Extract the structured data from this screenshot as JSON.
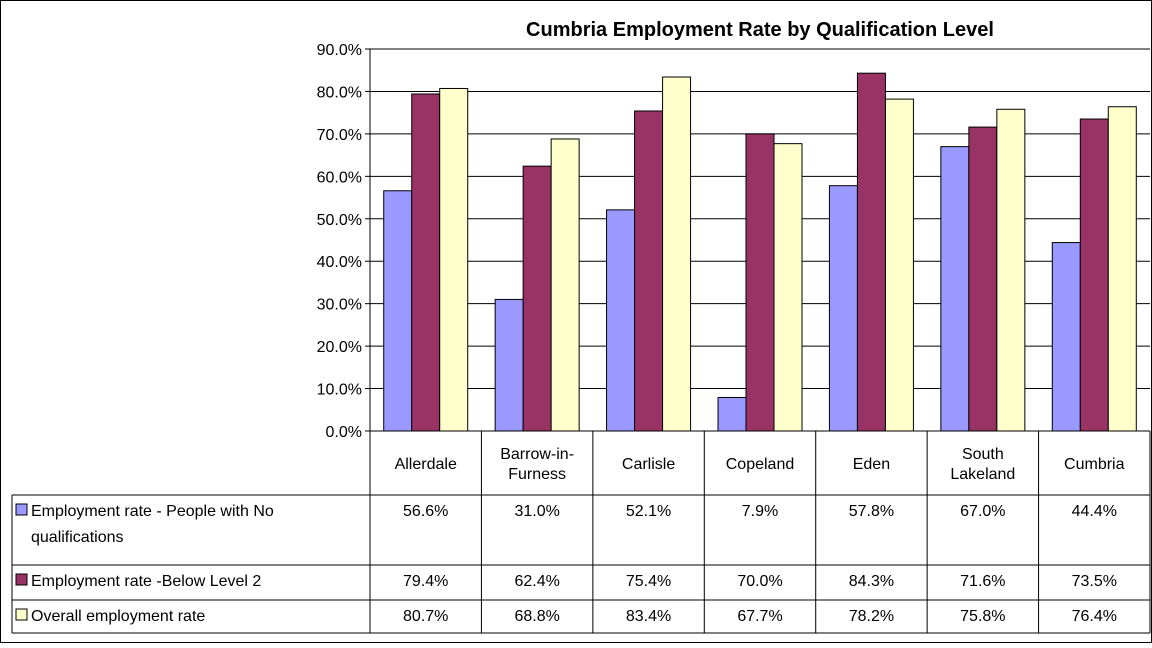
{
  "chart_data": {
    "type": "bar",
    "title": "Cumbria Employment Rate by Qualification Level",
    "categories": [
      [
        "Allerdale"
      ],
      [
        "Barrow-in-",
        "Furness"
      ],
      [
        "Carlisle"
      ],
      [
        "Copeland"
      ],
      [
        "Eden"
      ],
      [
        "South",
        "Lakeland"
      ],
      [
        "Cumbria"
      ]
    ],
    "series": [
      {
        "name_lines": [
          "Employment rate - People with No",
          "qualifications"
        ],
        "color": "#9999FF",
        "values": [
          56.6,
          31.0,
          52.1,
          7.9,
          57.8,
          67.0,
          44.4
        ],
        "labels": [
          "56.6%",
          "31.0%",
          "52.1%",
          "7.9%",
          "57.8%",
          "67.0%",
          "44.4%"
        ]
      },
      {
        "name_lines": [
          "Employment rate -Below Level 2"
        ],
        "color": "#993366",
        "values": [
          79.4,
          62.4,
          75.4,
          70.0,
          84.3,
          71.6,
          73.5
        ],
        "labels": [
          "79.4%",
          "62.4%",
          "75.4%",
          "70.0%",
          "84.3%",
          "71.6%",
          "73.5%"
        ]
      },
      {
        "name_lines": [
          "Overall employment rate"
        ],
        "color": "#FFFFCC",
        "values": [
          80.7,
          68.8,
          83.4,
          67.7,
          78.2,
          75.8,
          76.4
        ],
        "labels": [
          "80.7%",
          "68.8%",
          "83.4%",
          "67.7%",
          "78.2%",
          "75.8%",
          "76.4%"
        ]
      }
    ],
    "ylim": [
      0,
      90
    ],
    "yticks": [
      "0.0%",
      "10.0%",
      "20.0%",
      "30.0%",
      "40.0%",
      "50.0%",
      "60.0%",
      "70.0%",
      "80.0%",
      "90.0%"
    ],
    "grid": true,
    "legend": "data-table"
  }
}
